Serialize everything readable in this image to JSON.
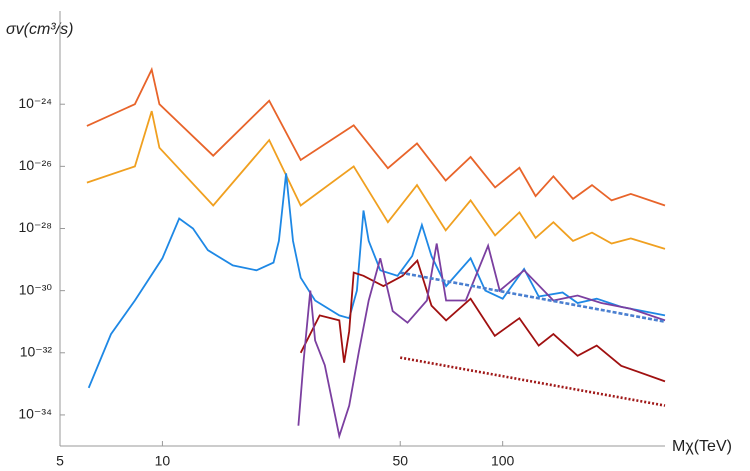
{
  "chart_data": {
    "type": "line",
    "xlabel": "Mχ(TeV)",
    "ylabel": "σv(cm³/s)",
    "xscale": "log",
    "yscale": "log",
    "xlim": [
      5,
      300
    ],
    "ylim": [
      1e-35,
      1e-21
    ],
    "xticks": [
      5,
      10,
      50,
      100
    ],
    "yticks": [
      {
        "value": 1e-34,
        "label": "10⁻³⁴"
      },
      {
        "value": 1e-32,
        "label": "10⁻³²"
      },
      {
        "value": 1e-30,
        "label": "10⁻³⁰"
      },
      {
        "value": 1e-28,
        "label": "10⁻²⁸"
      },
      {
        "value": 1e-26,
        "label": "10⁻²⁶"
      },
      {
        "value": 1e-24,
        "label": "10⁻²⁴"
      }
    ],
    "series": [
      {
        "color": "#e8642a",
        "dash": "solid",
        "x": [
          6,
          8.3,
          9.3,
          9.8,
          14.1,
          20.6,
          25.5,
          36.5,
          46,
          56,
          68,
          80.5,
          95,
          112,
          125,
          141,
          161,
          183,
          209,
          238,
          300
        ],
        "values": [
          2e-25,
          1e-24,
          1.3e-23,
          1e-24,
          2.2e-26,
          1.3e-24,
          1.6e-26,
          2.1e-25,
          8.7e-27,
          5.5e-26,
          3.5e-27,
          2e-26,
          2.1e-27,
          9e-27,
          1.1e-27,
          4.8e-27,
          9e-28,
          2.5e-27,
          8e-28,
          1.3e-27,
          5.5e-28
        ]
      },
      {
        "color": "#f0a020",
        "dash": "solid",
        "x": [
          6,
          8.3,
          9.3,
          9.8,
          14.1,
          20.6,
          25.5,
          36.5,
          46,
          56,
          68,
          80.5,
          95,
          112,
          125,
          141,
          161,
          183,
          209,
          238,
          300
        ],
        "values": [
          3e-27,
          1e-26,
          6e-25,
          4e-26,
          5.5e-28,
          7e-26,
          5.5e-28,
          1e-26,
          1.6e-28,
          2.5e-27,
          8.7e-29,
          8e-28,
          6e-29,
          3.3e-28,
          5e-29,
          1.6e-28,
          4e-29,
          7.4e-29,
          3.3e-29,
          4.8e-29,
          2.2e-29
        ]
      },
      {
        "color": "#1e88e5",
        "dash": "solid",
        "x": [
          6.07,
          7.06,
          8.3,
          10,
          11.2,
          12.3,
          13.6,
          16.1,
          18.9,
          21.2,
          22,
          23.1,
          24.2,
          25.5,
          28.1,
          33.1,
          35.4,
          37.3,
          39,
          40.4,
          43.7,
          49.1,
          54.2,
          57.9,
          61.8,
          68.2,
          80.5,
          88.9,
          100,
          115.6,
          127.6,
          150,
          166,
          189,
          223,
          300
        ],
        "values": [
          7.4e-34,
          4e-32,
          4.8e-31,
          1.1e-29,
          2.1e-28,
          1e-28,
          2e-29,
          6.5e-30,
          4.5e-30,
          8e-30,
          4e-29,
          6e-27,
          4e-29,
          2.6e-30,
          4.8e-31,
          1.6e-31,
          1.3e-31,
          1e-30,
          3.8e-28,
          4e-29,
          4.5e-30,
          3e-30,
          1.3e-29,
          1.3e-28,
          1.3e-29,
          1.4e-30,
          1.1e-29,
          1e-30,
          5.5e-31,
          5e-30,
          6.5e-31,
          8.7e-31,
          4e-31,
          5.5e-31,
          3e-31,
          1.6e-31
        ]
      },
      {
        "color": "#a01010",
        "dash": "solid",
        "x": [
          25.5,
          29,
          33.1,
          34.2,
          35.4,
          36.5,
          39,
          44.6,
          50.8,
          56.1,
          61.8,
          68.2,
          80.5,
          94.8,
          112,
          127.6,
          141,
          166,
          189,
          223,
          300
        ],
        "values": [
          1e-32,
          1.6e-31,
          1.1e-31,
          4.8e-33,
          5e-32,
          3.8e-30,
          3e-30,
          1.4e-30,
          3e-30,
          9.3e-30,
          3.3e-31,
          1.1e-31,
          5.5e-31,
          3.5e-32,
          1.3e-31,
          1.7e-32,
          4e-32,
          8e-33,
          1.7e-32,
          3.8e-33,
          1.2e-33
        ]
      },
      {
        "color": "#7b3fa0",
        "dash": "solid",
        "x": [
          25.1,
          26,
          27.2,
          28.1,
          30,
          33.1,
          35.4,
          37.8,
          40.4,
          43.7,
          47.5,
          52.5,
          59.9,
          64,
          68.2,
          77.9,
          90.6,
          98,
          115.6,
          141,
          166,
          195,
          238,
          300
        ],
        "values": [
          4.5e-35,
          5.5e-33,
          1e-30,
          2.5e-32,
          4e-33,
          2.1e-35,
          2e-34,
          1.1e-32,
          4.8e-31,
          1.1e-29,
          2.2e-31,
          9.3e-32,
          4.8e-31,
          3.3e-29,
          4.8e-31,
          4.8e-31,
          2.8e-29,
          1e-30,
          4.5e-30,
          4.8e-31,
          7e-31,
          4e-31,
          2.6e-31,
          1.1e-31
        ]
      },
      {
        "color": "#4a7fd0",
        "dash": "dashed",
        "x": [
          50,
          300
        ],
        "values": [
          3.8e-30,
          1e-31
        ]
      },
      {
        "color": "#a01818",
        "dash": "dotted",
        "x": [
          50,
          300
        ],
        "values": [
          7e-33,
          2e-34
        ]
      }
    ]
  }
}
